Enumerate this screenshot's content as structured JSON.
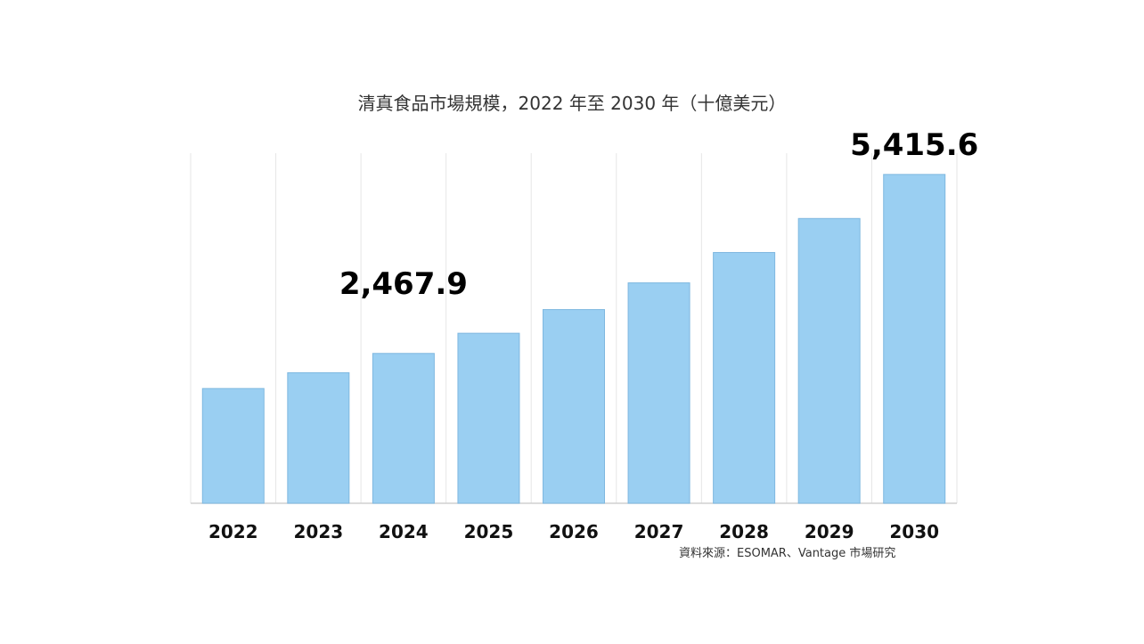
{
  "chart_data": {
    "type": "bar",
    "title": "清真食品市場規模，2022 年至 2030 年（十億美元）",
    "xlabel": "",
    "ylabel": "",
    "categories": [
      "2022",
      "2023",
      "2024",
      "2025",
      "2026",
      "2027",
      "2028",
      "2029",
      "2030"
    ],
    "series": [
      {
        "values": [
          1890,
          2150,
          2467.9,
          2800,
          3190,
          3630,
          4130,
          4690,
          5415.6
        ],
        "data_labels": [
          "",
          "",
          "2,467.9",
          "",
          "",
          "",
          "",
          "",
          "5,415.6"
        ]
      }
    ],
    "ylim": [
      0,
      6000
    ],
    "grid": "vertical",
    "bar_color": "#9ACFF2",
    "bar_edge_color": "#7FB8E0",
    "grid_color": "#E6E6E6",
    "legend": "none",
    "source": "資料來源：ESOMAR、Vantage 市場研究"
  }
}
